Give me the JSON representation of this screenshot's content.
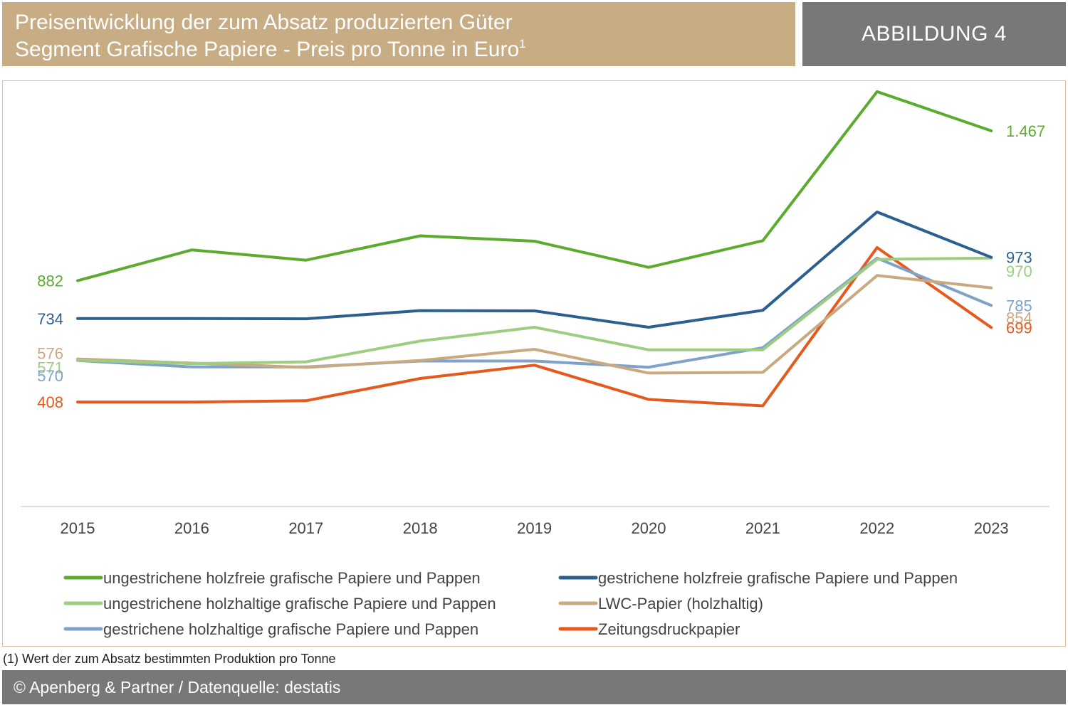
{
  "header": {
    "title_line1": "Preisentwicklung der zum Absatz produzierten Güter",
    "title_line2_main": "Segment Grafische Papiere - ",
    "title_line2_sub": "Preis pro Tonne in Euro",
    "title_line2_sup": "1",
    "badge": "ABBILDUNG 4"
  },
  "colors": {
    "title_bg": "#c8ad84",
    "badge_bg": "#787878",
    "footer_bg": "#787878",
    "frame_border": "#d9c39f"
  },
  "chart_data": {
    "type": "line",
    "x": [
      "2015",
      "2016",
      "2017",
      "2018",
      "2019",
      "2020",
      "2021",
      "2022",
      "2023"
    ],
    "ylim": [
      0,
      1560
    ],
    "grid": false,
    "legend_position": "bottom",
    "series": [
      {
        "name": "ungestrichene holzfreie grafische Papiere und Pappen",
        "color": "#5bab2e",
        "values": [
          882,
          1002,
          962,
          1057,
          1036,
          934,
          1038,
          1620,
          1467
        ],
        "start_label": "882",
        "end_label": "1.467"
      },
      {
        "name": "gestrichene holzfreie grafische Papiere und Pappen",
        "color": "#2a5f8f",
        "values": [
          734,
          734,
          733,
          765,
          764,
          700,
          766,
          1150,
          973
        ],
        "start_label": "734",
        "end_label": "973"
      },
      {
        "name": "ungestrichene holzhaltige grafische Papiere und Pappen",
        "color": "#9dcd81",
        "values": [
          571,
          558,
          565,
          646,
          700,
          612,
          612,
          965,
          970
        ],
        "start_label": "571",
        "end_label": "970"
      },
      {
        "name": "LWC-Papier (holzhaltig)",
        "color": "#c9a980",
        "values": [
          576,
          560,
          543,
          570,
          614,
          521,
          524,
          902,
          854
        ],
        "start_label": "576",
        "end_label": "854"
      },
      {
        "name": "gestrichene holzhaltige grafische Papiere und Pappen",
        "color": "#7fa3c8",
        "values": [
          570,
          545,
          545,
          568,
          568,
          544,
          620,
          970,
          785
        ],
        "start_label": "570",
        "end_label": "785"
      },
      {
        "name": "Zeitungsdruckpapier",
        "color": "#e55a1c",
        "values": [
          408,
          408,
          413,
          500,
          552,
          418,
          393,
          1011,
          699
        ],
        "start_label": "408",
        "end_label": "699"
      }
    ]
  },
  "footnote": "(1) Wert der zum Absatz bestimmten Produktion pro Tonne",
  "footer": "© Apenberg & Partner / Datenquelle: destatis"
}
